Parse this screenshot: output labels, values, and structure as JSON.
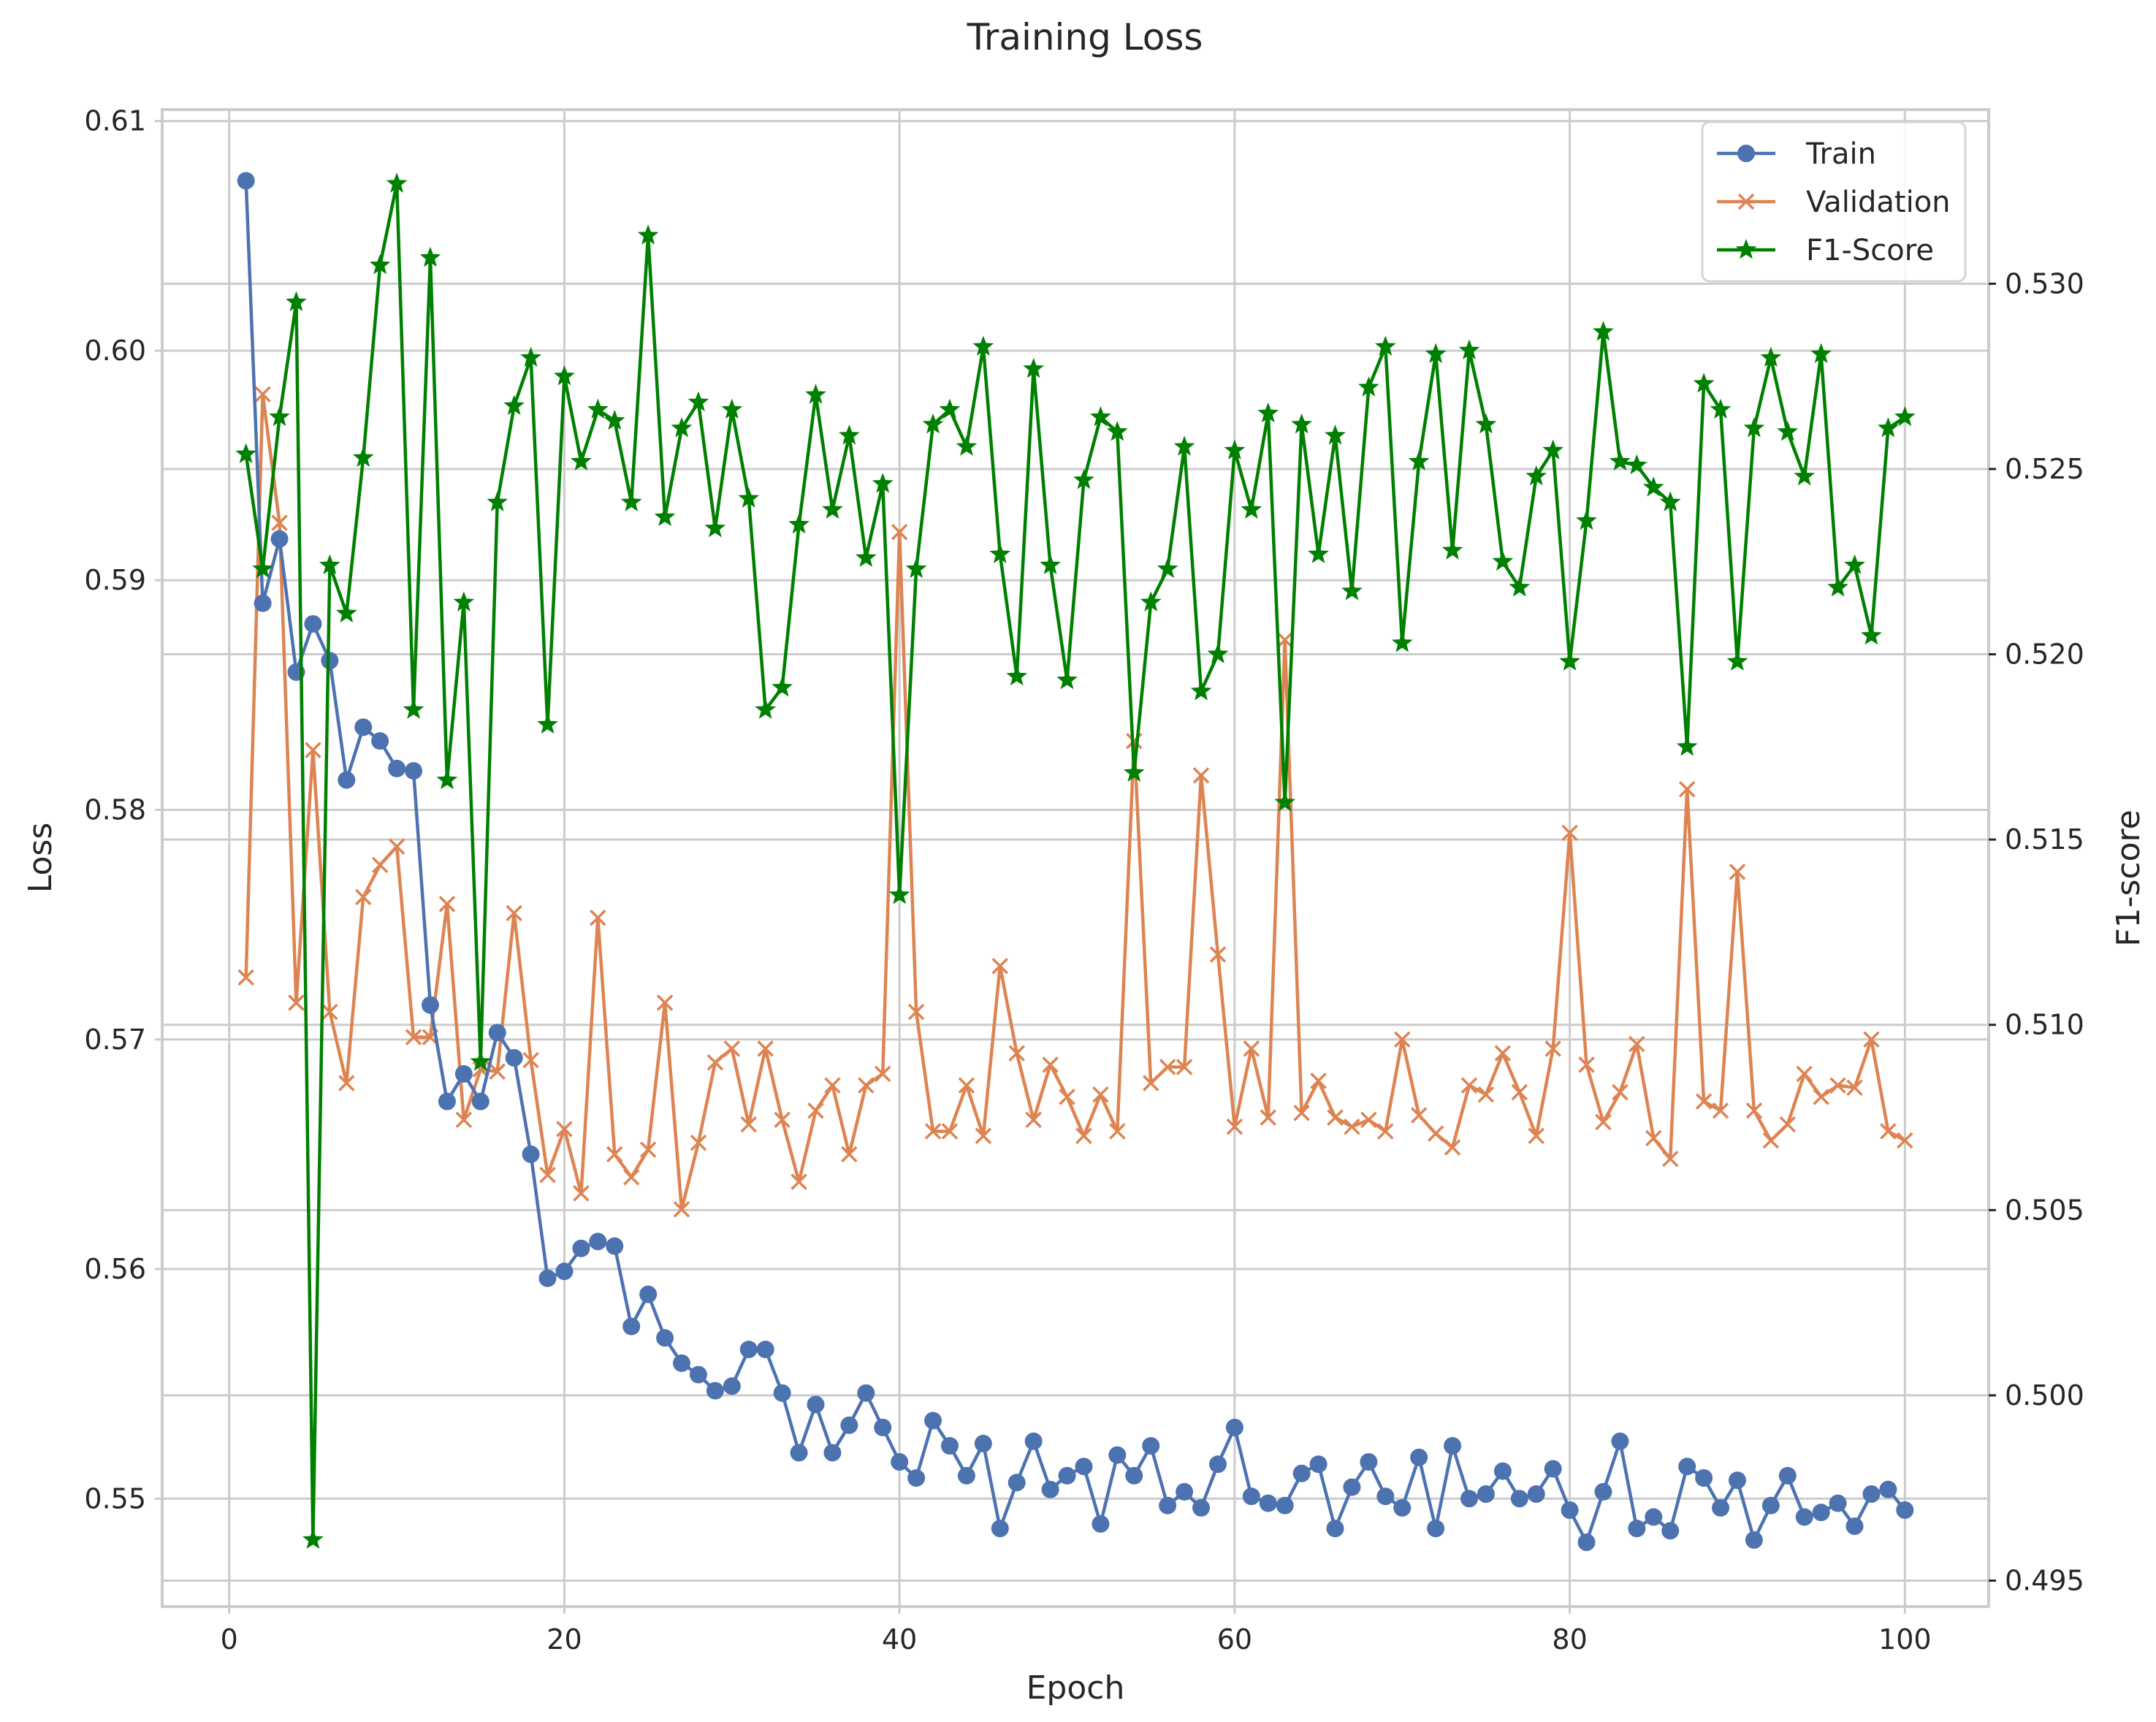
{
  "chart_data": {
    "type": "line",
    "title": "Training Loss",
    "xlabel": "Epoch",
    "ylabel": "Loss",
    "y2label": "F1-score",
    "xlim": [
      -4,
      105
    ],
    "ylim": [
      0.5453,
      0.6105
    ],
    "y2lim": [
      0.4943,
      0.5347
    ],
    "xticks": [
      0,
      20,
      40,
      60,
      80,
      100
    ],
    "yticks": [
      0.55,
      0.56,
      0.57,
      0.58,
      0.59,
      0.6,
      0.61
    ],
    "ytick_labels": [
      "0.55",
      "0.56",
      "0.57",
      "0.58",
      "0.59",
      "0.60",
      "0.61"
    ],
    "y2ticks": [
      0.495,
      0.5,
      0.505,
      0.51,
      0.515,
      0.52,
      0.525,
      0.53
    ],
    "y2tick_labels": [
      "0.495",
      "0.500",
      "0.505",
      "0.510",
      "0.515",
      "0.520",
      "0.525",
      "0.530"
    ],
    "grid": true,
    "legend_position": "top-right",
    "x": [
      1,
      2,
      3,
      4,
      5,
      6,
      7,
      8,
      9,
      10,
      11,
      12,
      13,
      14,
      15,
      16,
      17,
      18,
      19,
      20,
      21,
      22,
      23,
      24,
      25,
      26,
      27,
      28,
      29,
      30,
      31,
      32,
      33,
      34,
      35,
      36,
      37,
      38,
      39,
      40,
      41,
      42,
      43,
      44,
      45,
      46,
      47,
      48,
      49,
      50,
      51,
      52,
      53,
      54,
      55,
      56,
      57,
      58,
      59,
      60,
      61,
      62,
      63,
      64,
      65,
      66,
      67,
      68,
      69,
      70,
      71,
      72,
      73,
      74,
      75,
      76,
      77,
      78,
      79,
      80,
      81,
      82,
      83,
      84,
      85,
      86,
      87,
      88,
      89,
      90,
      91,
      92,
      93,
      94,
      95,
      96,
      97,
      98,
      99,
      100
    ],
    "series": [
      {
        "name": "Train",
        "axis": "left",
        "color": "#4c72b0",
        "marker": "circle",
        "values": [
          0.6074,
          0.589,
          0.5918,
          0.586,
          0.5881,
          0.5865,
          0.5813,
          0.5836,
          0.583,
          0.5818,
          0.5817,
          0.5715,
          0.5673,
          0.5685,
          0.5673,
          0.5703,
          0.5692,
          0.565,
          0.5596,
          0.5599,
          0.5609,
          0.5612,
          0.561,
          0.5575,
          0.5589,
          0.557,
          0.5559,
          0.5554,
          0.5547,
          0.5549,
          0.5565,
          0.5565,
          0.5546,
          0.552,
          0.5541,
          0.552,
          0.5532,
          0.5546,
          0.5531,
          0.5516,
          0.5509,
          0.5534,
          0.5523,
          0.551,
          0.5524,
          0.5487,
          0.5507,
          0.5525,
          0.5504,
          0.551,
          0.5514,
          0.5489,
          0.5519,
          0.551,
          0.5523,
          0.5497,
          0.5503,
          0.5496,
          0.5515,
          0.5531,
          0.5501,
          0.5498,
          0.5497,
          0.5511,
          0.5515,
          0.5487,
          0.5505,
          0.5516,
          0.5501,
          0.5496,
          0.5518,
          0.5487,
          0.5523,
          0.55,
          0.5502,
          0.5512,
          0.55,
          0.5502,
          0.5513,
          0.5495,
          0.5481,
          0.5503,
          0.5525,
          0.5487,
          0.5492,
          0.5486,
          0.5514,
          0.5509,
          0.5496,
          0.5508,
          0.5482,
          0.5497,
          0.551,
          0.5492,
          0.5494,
          0.5498,
          0.5488,
          0.5502,
          0.5504,
          0.5495
        ]
      },
      {
        "name": "Validation",
        "axis": "left",
        "color": "#dd8452",
        "marker": "x",
        "values": [
          0.5727,
          0.5981,
          0.5925,
          0.5716,
          0.5826,
          0.5712,
          0.5681,
          0.5762,
          0.5776,
          0.5784,
          0.5701,
          0.5701,
          0.5759,
          0.5665,
          0.5687,
          0.5686,
          0.5755,
          0.5691,
          0.5641,
          0.5661,
          0.5633,
          0.5753,
          0.565,
          0.564,
          0.5652,
          0.5716,
          0.5626,
          0.5655,
          0.569,
          0.5696,
          0.5663,
          0.5696,
          0.5665,
          0.5638,
          0.5669,
          0.568,
          0.565,
          0.568,
          0.5685,
          0.5921,
          0.5712,
          0.566,
          0.566,
          0.568,
          0.5658,
          0.5732,
          0.5694,
          0.5665,
          0.5689,
          0.5675,
          0.5658,
          0.5676,
          0.566,
          0.583,
          0.5681,
          0.5688,
          0.5688,
          0.5815,
          0.5737,
          0.5662,
          0.5696,
          0.5666,
          0.5874,
          0.5668,
          0.5682,
          0.5666,
          0.5662,
          0.5665,
          0.566,
          0.57,
          0.5667,
          0.5659,
          0.5653,
          0.568,
          0.5676,
          0.5694,
          0.5677,
          0.5658,
          0.5696,
          0.579,
          0.5689,
          0.5664,
          0.5677,
          0.5698,
          0.5657,
          0.5648,
          0.5809,
          0.5673,
          0.5669,
          0.5773,
          0.5669,
          0.5656,
          0.5663,
          0.5685,
          0.5675,
          0.568,
          0.5679,
          0.57,
          0.566,
          0.5656
        ]
      },
      {
        "name": "F1-Score",
        "axis": "right",
        "color": "#008000",
        "marker": "star",
        "values": [
          0.5254,
          0.5223,
          0.5264,
          0.5295,
          0.4961,
          0.5224,
          0.5211,
          0.5253,
          0.5305,
          0.5327,
          0.5185,
          0.5307,
          0.5166,
          0.5214,
          0.509,
          0.5241,
          0.5267,
          0.528,
          0.5181,
          0.5275,
          0.5252,
          0.5266,
          0.5263,
          0.5241,
          0.5313,
          0.5237,
          0.5261,
          0.5268,
          0.5234,
          0.5266,
          0.5242,
          0.5185,
          0.5191,
          0.5235,
          0.527,
          0.5239,
          0.5259,
          0.5226,
          0.5246,
          0.5135,
          0.5223,
          0.5262,
          0.5266,
          0.5256,
          0.5283,
          0.5227,
          0.5194,
          0.5277,
          0.5224,
          0.5193,
          0.5247,
          0.5264,
          0.526,
          0.5168,
          0.5214,
          0.5223,
          0.5256,
          0.519,
          0.52,
          0.5255,
          0.5239,
          0.5265,
          0.516,
          0.5262,
          0.5227,
          0.5259,
          0.5217,
          0.5272,
          0.5283,
          0.5203,
          0.5252,
          0.5281,
          0.5228,
          0.5282,
          0.5262,
          0.5225,
          0.5218,
          0.5248,
          0.5255,
          0.5198,
          0.5236,
          0.5287,
          0.5252,
          0.5251,
          0.5245,
          0.5241,
          0.5175,
          0.5273,
          0.5266,
          0.5198,
          0.5261,
          0.528,
          0.526,
          0.5248,
          0.5281,
          0.5218,
          0.5224,
          0.5205,
          0.5261,
          0.5264
        ]
      }
    ]
  }
}
